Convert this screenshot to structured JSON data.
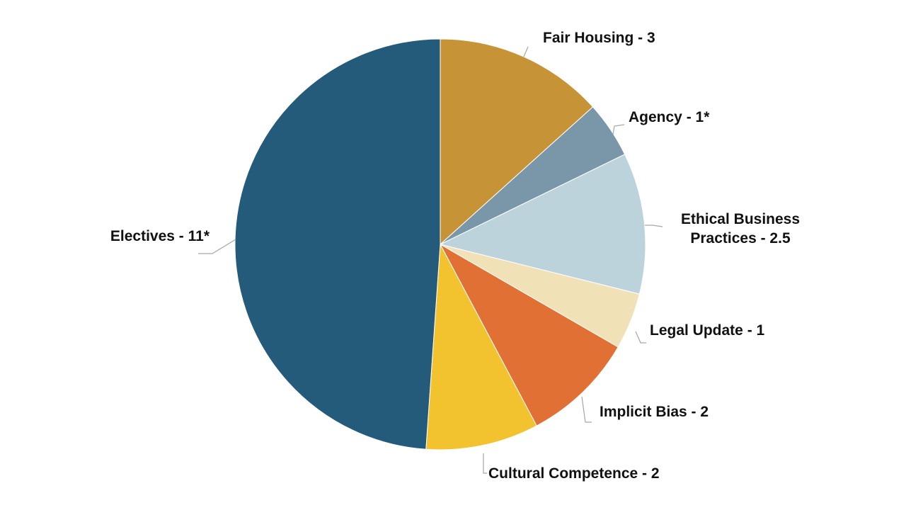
{
  "chart_data": {
    "type": "pie",
    "categories": [
      "Fair Housing - 3",
      "Agency - 1*",
      "Ethical Business Practices - 2.5",
      "Legal Update - 1",
      "Implicit Bias - 2",
      "Cultural Competence - 2",
      "Electives - 11*"
    ],
    "values": [
      3,
      1,
      2.5,
      1,
      2,
      2,
      11
    ],
    "colors": [
      "#c79337",
      "#7a96a9",
      "#bcd3db",
      "#f0e2b6",
      "#e07033",
      "#f3c22f",
      "#245a7a"
    ]
  }
}
